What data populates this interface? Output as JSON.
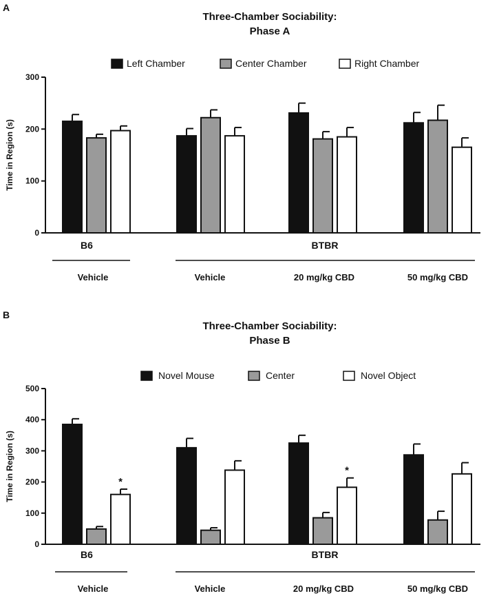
{
  "chart_data": [
    {
      "type": "bar",
      "panel_label": "A",
      "title": [
        "Three-Chamber Sociability:",
        "Phase A"
      ],
      "ylabel": "Time in Region (s)",
      "ylim": [
        0,
        300
      ],
      "yticks": [
        0,
        100,
        200,
        300
      ],
      "legend": [
        "Left Chamber",
        "Center Chamber",
        "Right Chamber"
      ],
      "series_colors": [
        "#111111",
        "#9a9a9a",
        "#ffffff"
      ],
      "groups": [
        {
          "label": "Vehicle",
          "strain": "B6",
          "values": [
            215,
            183,
            197
          ],
          "errors": [
            13,
            7,
            9
          ],
          "stars": [
            "",
            "",
            ""
          ]
        },
        {
          "label": "Vehicle",
          "strain": "BTBR",
          "values": [
            187,
            222,
            187
          ],
          "errors": [
            14,
            15,
            16
          ],
          "stars": [
            "",
            "",
            ""
          ]
        },
        {
          "label": "20 mg/kg CBD",
          "strain": "BTBR",
          "values": [
            231,
            181,
            185
          ],
          "errors": [
            19,
            14,
            18
          ],
          "stars": [
            "",
            "",
            ""
          ]
        },
        {
          "label": "50 mg/kg CBD",
          "strain": "BTBR",
          "values": [
            212,
            217,
            165
          ],
          "errors": [
            20,
            29,
            18
          ],
          "stars": [
            "",
            "",
            ""
          ]
        }
      ],
      "strain_labels": [
        "B6",
        "BTBR"
      ]
    },
    {
      "type": "bar",
      "panel_label": "B",
      "title": [
        "Three-Chamber Sociability:",
        "Phase B"
      ],
      "ylabel": "Time in Region (s)",
      "ylim": [
        0,
        500
      ],
      "yticks": [
        0,
        100,
        200,
        300,
        400,
        500
      ],
      "legend": [
        "Novel Mouse",
        "Center",
        "Novel Object"
      ],
      "series_colors": [
        "#111111",
        "#9a9a9a",
        "#ffffff"
      ],
      "groups": [
        {
          "label": "Vehicle",
          "strain": "B6",
          "values": [
            385,
            49,
            160
          ],
          "errors": [
            18,
            8,
            17
          ],
          "stars": [
            "",
            "",
            "*"
          ]
        },
        {
          "label": "Vehicle",
          "strain": "BTBR",
          "values": [
            310,
            45,
            238
          ],
          "errors": [
            30,
            8,
            30
          ],
          "stars": [
            "",
            "",
            ""
          ]
        },
        {
          "label": "20 mg/kg CBD",
          "strain": "BTBR",
          "values": [
            325,
            85,
            183
          ],
          "errors": [
            25,
            17,
            30
          ],
          "stars": [
            "",
            "",
            "*"
          ]
        },
        {
          "label": "50 mg/kg CBD",
          "strain": "BTBR",
          "values": [
            287,
            78,
            226
          ],
          "errors": [
            35,
            28,
            36
          ],
          "stars": [
            "",
            "",
            ""
          ]
        }
      ],
      "strain_labels": [
        "B6",
        "BTBR"
      ]
    }
  ]
}
